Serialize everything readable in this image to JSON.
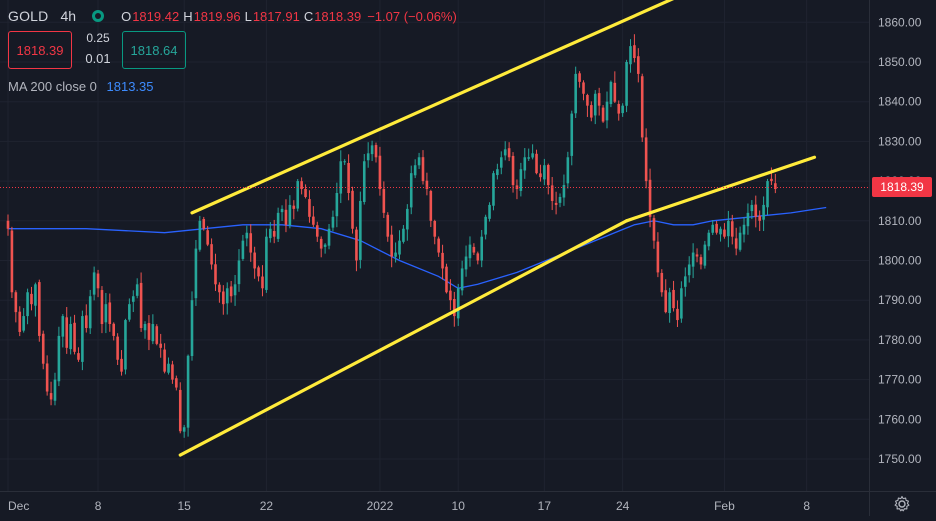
{
  "header": {
    "symbol": "GOLD",
    "timeframe": "4h",
    "ohlc": [
      {
        "label": "O",
        "value": "1819.42"
      },
      {
        "label": "H",
        "value": "1819.96"
      },
      {
        "label": "L",
        "value": "1817.91"
      },
      {
        "label": "C",
        "value": "1818.39"
      }
    ],
    "change": "−1.07 (−0.06%)",
    "bid": "1818.39",
    "ask": "1818.64",
    "spread_top": "0.25",
    "spread_bottom": "0.01"
  },
  "indicator": {
    "label": "MA 200 close 0",
    "value": "1813.35"
  },
  "last_price_tag": "1818.39",
  "colors": {
    "background": "#161a25",
    "up": "#26a69a",
    "down": "#ef5350",
    "ma": "#2962ff",
    "channel": "#ffeb3b",
    "price_line": "#f23645",
    "axis_text": "#b2b5be",
    "grid": "#1f2330"
  },
  "icons": {
    "settings": "gear-icon",
    "status": "market-status-dot-icon"
  },
  "chart_data": {
    "type": "candlestick",
    "title": "GOLD",
    "timeframe": "4h",
    "xlabel": "",
    "ylabel": "",
    "ylim": [
      1743,
      1864
    ],
    "y_ticks": [
      1750,
      1760,
      1770,
      1780,
      1790,
      1800,
      1810,
      1820,
      1830,
      1840,
      1850,
      1860
    ],
    "y_tick_labels": [
      "1750.00",
      "1760.00",
      "1770.00",
      "1780.00",
      "1790.00",
      "1800.00",
      "1810.00",
      "1820.00",
      "1830.00",
      "1840.00",
      "1850.00",
      "1860.00"
    ],
    "x_ticks": [
      {
        "label": "Dec",
        "bar": 0
      },
      {
        "label": "8",
        "bar": 23
      },
      {
        "label": "15",
        "bar": 45
      },
      {
        "label": "22",
        "bar": 66
      },
      {
        "label": "2022",
        "bar": 95
      },
      {
        "label": "10",
        "bar": 115
      },
      {
        "label": "17",
        "bar": 137
      },
      {
        "label": "24",
        "bar": 157
      },
      {
        "label": "Feb",
        "bar": 183
      },
      {
        "label": "8",
        "bar": 204
      }
    ],
    "grid": true,
    "legend": "top-left",
    "closes": [
      1808,
      1792,
      1787,
      1782,
      1786,
      1792,
      1789,
      1794,
      1781,
      1774,
      1767,
      1765,
      1770,
      1781,
      1786,
      1778,
      1784,
      1777,
      1775,
      1786,
      1783,
      1791,
      1797,
      1793,
      1784,
      1789,
      1784,
      1781,
      1775,
      1772,
      1785,
      1789,
      1791,
      1794,
      1783,
      1784,
      1780,
      1784,
      1779,
      1778,
      1772,
      1774,
      1770,
      1768,
      1757,
      1758,
      1776,
      1790,
      1803,
      1810,
      1808,
      1804,
      1799,
      1794,
      1792,
      1789,
      1793,
      1791,
      1794,
      1800,
      1805,
      1807,
      1802,
      1798,
      1796,
      1793,
      1806,
      1808,
      1806,
      1812,
      1813,
      1809,
      1814,
      1813,
      1820,
      1818,
      1816,
      1811,
      1809,
      1806,
      1803,
      1804,
      1808,
      1811,
      1817,
      1825,
      1825,
      1817,
      1808,
      1800,
      1815,
      1825,
      1827,
      1829,
      1826,
      1818,
      1812,
      1806,
      1801,
      1802,
      1805,
      1808,
      1813,
      1822,
      1824,
      1826,
      1820,
      1818,
      1810,
      1806,
      1802,
      1798,
      1792,
      1790,
      1786,
      1793,
      1798,
      1801,
      1804,
      1802,
      1800,
      1806,
      1811,
      1814,
      1822,
      1823,
      1826,
      1828,
      1826,
      1819,
      1818,
      1823,
      1826,
      1826,
      1827,
      1822,
      1821,
      1824,
      1819,
      1815,
      1814,
      1816,
      1819,
      1826,
      1837,
      1847,
      1845,
      1842,
      1839,
      1836,
      1842,
      1839,
      1835,
      1840,
      1845,
      1840,
      1837,
      1839,
      1850,
      1854,
      1851,
      1847,
      1831,
      1820,
      1811,
      1805,
      1797,
      1792,
      1787,
      1792,
      1788,
      1785,
      1793,
      1796,
      1799,
      1802,
      1801,
      1799,
      1804,
      1807,
      1809,
      1807,
      1808,
      1806,
      1810,
      1806,
      1803,
      1807,
      1809,
      1812,
      1814,
      1811,
      1810,
      1814,
      1820,
      1820,
      1818
    ],
    "series": [
      {
        "name": "GOLD",
        "type": "candlestick"
      },
      {
        "name": "MA 200 close 0",
        "type": "line",
        "x": [
          0,
          20,
          40,
          60,
          70,
          80,
          90,
          100,
          110,
          115,
          120,
          130,
          140,
          150,
          160,
          165,
          170,
          175,
          180,
          190,
          200,
          209
        ],
        "values": [
          1808,
          1808,
          1807,
          1809,
          1809,
          1808,
          1805,
          1800,
          1796,
          1793,
          1794,
          1797,
          1801,
          1805,
          1809,
          1810,
          1809,
          1809,
          1810,
          1811,
          1812,
          1813.35
        ]
      }
    ],
    "annotations": [
      {
        "type": "trendline",
        "name": "channel-upper-line",
        "color": "#ffeb3b",
        "points": [
          [
            47,
            1812
          ],
          [
            170,
            1866
          ]
        ]
      },
      {
        "type": "trendline",
        "name": "channel-lower-line",
        "color": "#ffeb3b",
        "points": [
          [
            44,
            1751
          ],
          [
            158,
            1810
          ]
        ]
      },
      {
        "type": "trendline",
        "name": "channel-mid-line",
        "color": "#ffeb3b",
        "points": [
          [
            158,
            1810
          ],
          [
            206,
            1826
          ]
        ]
      },
      {
        "type": "horizontal-line",
        "name": "last-price-line",
        "value": 1818.39,
        "style": "dotted"
      }
    ]
  }
}
